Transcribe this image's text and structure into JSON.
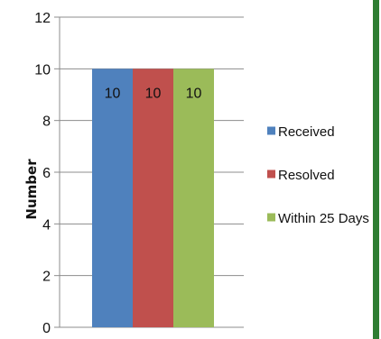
{
  "chart_data": {
    "type": "bar",
    "categories": [
      ""
    ],
    "series": [
      {
        "name": "Received",
        "values": [
          10
        ],
        "color": "#4f81bd"
      },
      {
        "name": "Resolved",
        "values": [
          10
        ],
        "color": "#c0504d"
      },
      {
        "name": "Within 25 Days",
        "values": [
          10
        ],
        "color": "#9bbb59"
      }
    ],
    "title": "",
    "xlabel": "",
    "ylabel": "Number",
    "ylim": [
      0,
      12
    ],
    "yticks": [
      0,
      2,
      4,
      6,
      8,
      10,
      12
    ],
    "grid": true,
    "legend": "right",
    "data_labels": true
  }
}
